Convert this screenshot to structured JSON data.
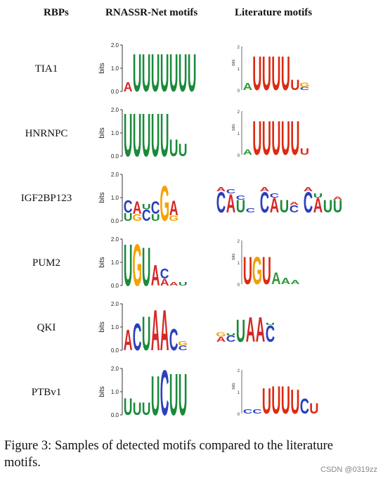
{
  "headers": {
    "rbps": "RBPs",
    "rnassr": "RNASSR-Net motifs",
    "literature": "Literature motifs"
  },
  "caption": "Figure 3: Samples of detected motifs compared to the literature motifs.",
  "credit": "CSDN @0319zz",
  "colors": {
    "A": "#d62728",
    "C": "#2b3fbf",
    "G": "#f5a200",
    "U": "#1a8a3a",
    "lit_U": "#dd2a12",
    "lit_A": "#2e9a3a",
    "lit_C": "#2540c0",
    "lit_G": "#f0a000"
  },
  "axis": {
    "ylabel": "bits",
    "yticks": [
      "0.0",
      "1.0",
      "2.0"
    ],
    "lit_yticks": [
      "0",
      "1",
      "2"
    ]
  },
  "rows": [
    {
      "name": "TIA1",
      "net": [
        [
          [
            "A",
            0.4
          ]
        ],
        [
          [
            "U",
            1.65
          ]
        ],
        [
          [
            "U",
            1.65
          ]
        ],
        [
          [
            "U",
            1.65
          ]
        ],
        [
          [
            "U",
            1.65
          ]
        ],
        [
          [
            "U",
            1.65
          ]
        ],
        [
          [
            "U",
            1.65
          ]
        ],
        [
          [
            "U",
            1.65
          ]
        ]
      ],
      "lit": [
        [
          [
            "A",
            0.35
          ]
        ],
        [
          [
            "U",
            1.6
          ]
        ],
        [
          [
            "U",
            1.6
          ]
        ],
        [
          [
            "U",
            1.6
          ]
        ],
        [
          [
            "U",
            1.6
          ]
        ],
        [
          [
            "U",
            0.5
          ]
        ],
        [
          [
            "C",
            0.15
          ],
          [
            "G",
            0.2
          ]
        ]
      ]
    },
    {
      "name": "HNRNPC",
      "net": [
        [
          [
            "U",
            1.9
          ]
        ],
        [
          [
            "U",
            1.9
          ]
        ],
        [
          [
            "U",
            1.9
          ]
        ],
        [
          [
            "U",
            1.9
          ]
        ],
        [
          [
            "U",
            1.9
          ]
        ],
        [
          [
            "U",
            0.75
          ]
        ],
        [
          [
            "U",
            0.55
          ]
        ]
      ],
      "lit": [
        [
          [
            "A",
            0.25
          ]
        ],
        [
          [
            "U",
            1.6
          ]
        ],
        [
          [
            "U",
            1.6
          ]
        ],
        [
          [
            "U",
            1.6
          ]
        ],
        [
          [
            "U",
            1.6
          ]
        ],
        [
          [
            "U",
            1.6
          ]
        ],
        [
          [
            "U",
            0.3
          ]
        ]
      ]
    },
    {
      "name": "IGF2BP123",
      "net": [
        [
          [
            "U",
            0.35
          ],
          [
            "C",
            0.55
          ]
        ],
        [
          [
            "G",
            0.3
          ],
          [
            "A",
            0.55
          ]
        ],
        [
          [
            "C",
            0.5
          ],
          [
            "U",
            0.25
          ]
        ],
        [
          [
            "U",
            0.3
          ],
          [
            "C",
            0.55
          ]
        ],
        [
          [
            "G",
            1.55
          ]
        ],
        [
          [
            "G",
            0.25
          ],
          [
            "A",
            0.65
          ]
        ]
      ],
      "lit": []
    },
    {
      "name": "PUM2",
      "net": [
        [
          [
            "U",
            1.85
          ]
        ],
        [
          [
            "G",
            1.85
          ]
        ],
        [
          [
            "U",
            1.7
          ]
        ],
        [
          [
            "A",
            0.9
          ]
        ],
        [
          [
            "A",
            0.3
          ],
          [
            "C",
            0.45
          ]
        ],
        [
          [
            "A",
            0.15
          ]
        ],
        [
          [
            "U",
            0.15
          ]
        ]
      ],
      "lit": [
        [
          [
            "U",
            1.3
          ]
        ],
        [
          [
            "G",
            1.3
          ]
        ],
        [
          [
            "U",
            1.3
          ]
        ],
        [
          [
            "A",
            0.55
          ]
        ],
        [
          [
            "A",
            0.3
          ]
        ],
        [
          [
            "A",
            0.2
          ]
        ]
      ]
    },
    {
      "name": "QKI",
      "net": [
        [
          [
            "A",
            0.9
          ]
        ],
        [
          [
            "C",
            1.2
          ]
        ],
        [
          [
            "U",
            1.5
          ]
        ],
        [
          [
            "A",
            1.8
          ]
        ],
        [
          [
            "A",
            1.8
          ]
        ],
        [
          [
            "C",
            0.95
          ]
        ],
        [
          [
            "C",
            0.2
          ],
          [
            "G",
            0.2
          ]
        ]
      ],
      "lit": []
    },
    {
      "name": "PTBv1",
      "net": [
        [
          [
            "U",
            0.75
          ]
        ],
        [
          [
            "U",
            0.55
          ]
        ],
        [
          [
            "U",
            0.55
          ]
        ],
        [
          [
            "U",
            1.75
          ]
        ],
        [
          [
            "C",
            2.0
          ]
        ],
        [
          [
            "U",
            1.85
          ]
        ],
        [
          [
            "U",
            1.85
          ]
        ]
      ],
      "lit": [
        [
          [
            "C",
            0.2
          ]
        ],
        [
          [
            "C",
            0.2
          ]
        ],
        [
          [
            "U",
            1.2
          ]
        ],
        [
          [
            "U",
            1.3
          ]
        ],
        [
          [
            "U",
            1.3
          ]
        ],
        [
          [
            "U",
            1.15
          ]
        ],
        [
          [
            "C",
            0.7
          ]
        ],
        [
          [
            "U",
            0.5
          ]
        ]
      ]
    }
  ]
}
